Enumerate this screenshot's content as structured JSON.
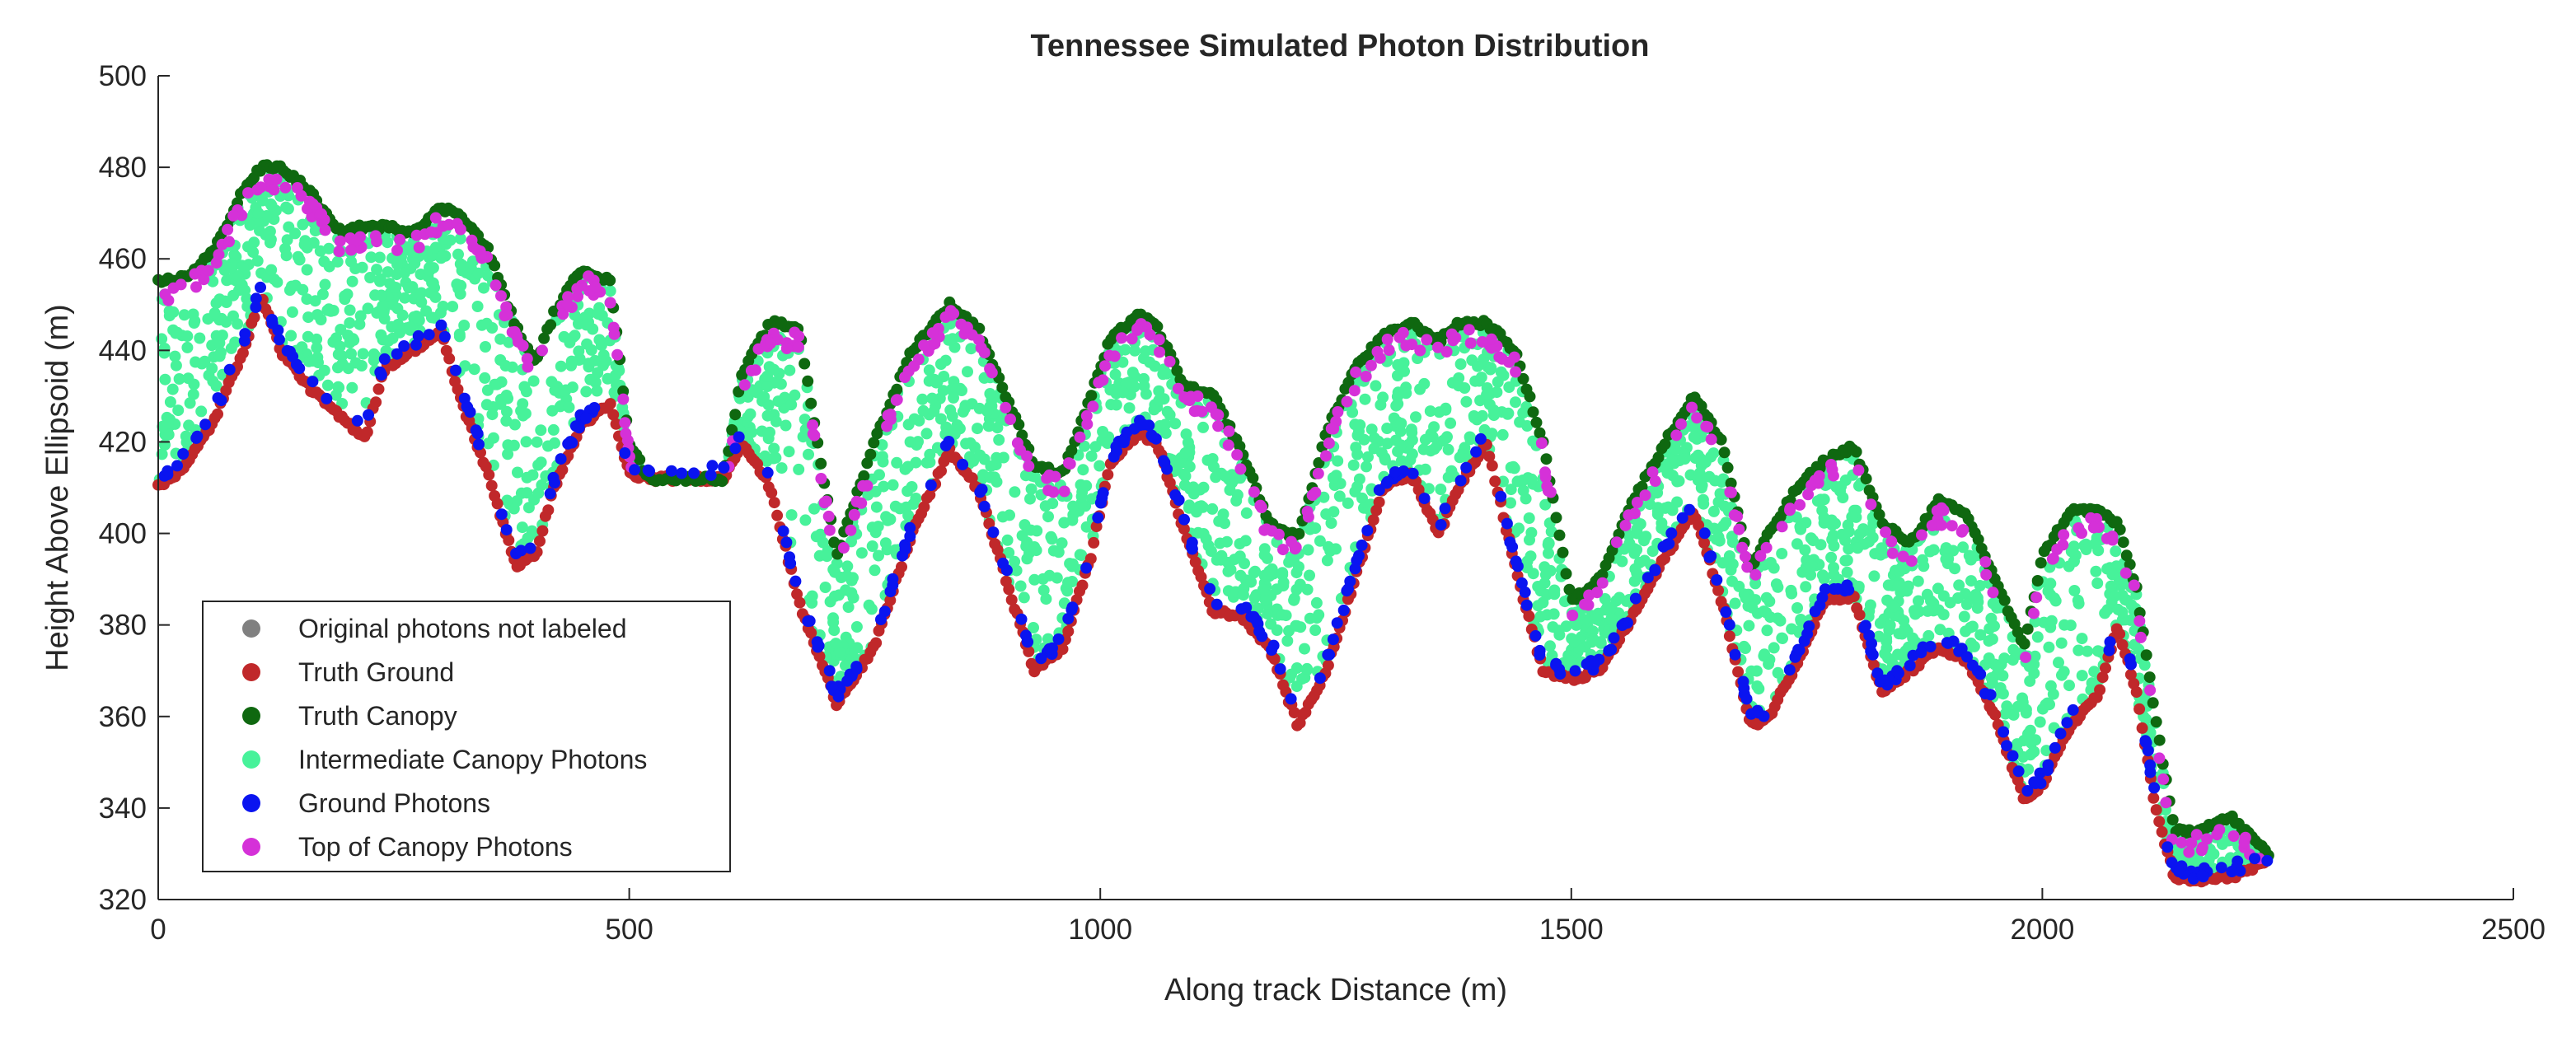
{
  "chart_data": {
    "type": "scatter",
    "title": "Tennessee Simulated Photon Distribution",
    "xlabel": "Along track Distance (m)",
    "ylabel": "Height Above Ellipsoid (m)",
    "xlim": [
      0,
      2500
    ],
    "ylim": [
      320,
      500
    ],
    "xticks": [
      0,
      500,
      1000,
      1500,
      2000,
      2500
    ],
    "yticks": [
      320,
      340,
      360,
      380,
      400,
      420,
      440,
      460,
      480,
      500
    ],
    "grid": false,
    "legend_position": "bottom-left",
    "ground_profile": {
      "x": [
        0,
        30,
        60,
        90,
        110,
        130,
        160,
        190,
        220,
        240,
        270,
        300,
        320,
        350,
        380,
        400,
        420,
        450,
        480,
        500,
        520,
        560,
        600,
        620,
        650,
        680,
        720,
        760,
        800,
        840,
        870,
        900,
        930,
        960,
        990,
        1010,
        1040,
        1060,
        1090,
        1120,
        1150,
        1180,
        1210,
        1240,
        1270,
        1300,
        1330,
        1360,
        1380,
        1410,
        1440,
        1470,
        1500,
        1530,
        1560,
        1600,
        1630,
        1660,
        1690,
        1710,
        1740,
        1770,
        1800,
        1830,
        1860,
        1890,
        1920,
        1950,
        1980,
        2000,
        2030,
        2060,
        2080,
        2100,
        2120,
        2140,
        2160,
        2200,
        2240
      ],
      "y": [
        410,
        415,
        425,
        440,
        452,
        440,
        432,
        426,
        421,
        436,
        440,
        444,
        430,
        413,
        393,
        395,
        410,
        424,
        428,
        413,
        412,
        412,
        412,
        420,
        410,
        385,
        363,
        375,
        400,
        418,
        410,
        390,
        370,
        375,
        395,
        415,
        422,
        420,
        400,
        383,
        382,
        375,
        358,
        370,
        390,
        410,
        413,
        400,
        410,
        420,
        393,
        370,
        368,
        370,
        380,
        395,
        405,
        385,
        358,
        360,
        372,
        386,
        386,
        365,
        370,
        375,
        372,
        360,
        342,
        345,
        358,
        365,
        380,
        365,
        340,
        325,
        324,
        325,
        328
      ]
    },
    "canopy_profile": {
      "x": [
        0,
        30,
        60,
        90,
        110,
        130,
        160,
        190,
        220,
        240,
        270,
        300,
        320,
        350,
        380,
        400,
        420,
        450,
        480,
        500,
        520,
        560,
        600,
        620,
        650,
        680,
        720,
        760,
        800,
        840,
        870,
        900,
        930,
        960,
        990,
        1010,
        1040,
        1060,
        1090,
        1120,
        1150,
        1180,
        1210,
        1240,
        1270,
        1300,
        1330,
        1360,
        1380,
        1410,
        1440,
        1470,
        1500,
        1530,
        1560,
        1600,
        1630,
        1660,
        1690,
        1710,
        1740,
        1770,
        1800,
        1830,
        1860,
        1890,
        1920,
        1950,
        1980,
        2000,
        2030,
        2060,
        2080,
        2100,
        2120,
        2140,
        2160,
        2200,
        2240
      ],
      "y": [
        455,
        456,
        462,
        475,
        480,
        480,
        475,
        466,
        467,
        467,
        466,
        471,
        470,
        462,
        445,
        437,
        448,
        458,
        455,
        420,
        412,
        412,
        412,
        435,
        446,
        445,
        395,
        420,
        440,
        450,
        445,
        430,
        415,
        413,
        430,
        442,
        448,
        445,
        432,
        430,
        418,
        402,
        399,
        422,
        436,
        443,
        446,
        442,
        446,
        446,
        440,
        420,
        385,
        390,
        405,
        420,
        430,
        420,
        392,
        400,
        410,
        416,
        419,
        402,
        398,
        407,
        404,
        390,
        375,
        395,
        405,
        405,
        402,
        388,
        360,
        335,
        335,
        338,
        330
      ]
    },
    "series": [
      {
        "name": "Original photons not labeled",
        "color": "#808080"
      },
      {
        "name": "Truth Ground",
        "color": "#c0282a"
      },
      {
        "name": "Truth Canopy",
        "color": "#0f6810"
      },
      {
        "name": "Intermediate Canopy Photons",
        "color": "#47f29a"
      },
      {
        "name": "Ground Photons",
        "color": "#0a14f0"
      },
      {
        "name": "Top of Canopy Photons",
        "color": "#d531d8"
      }
    ]
  }
}
